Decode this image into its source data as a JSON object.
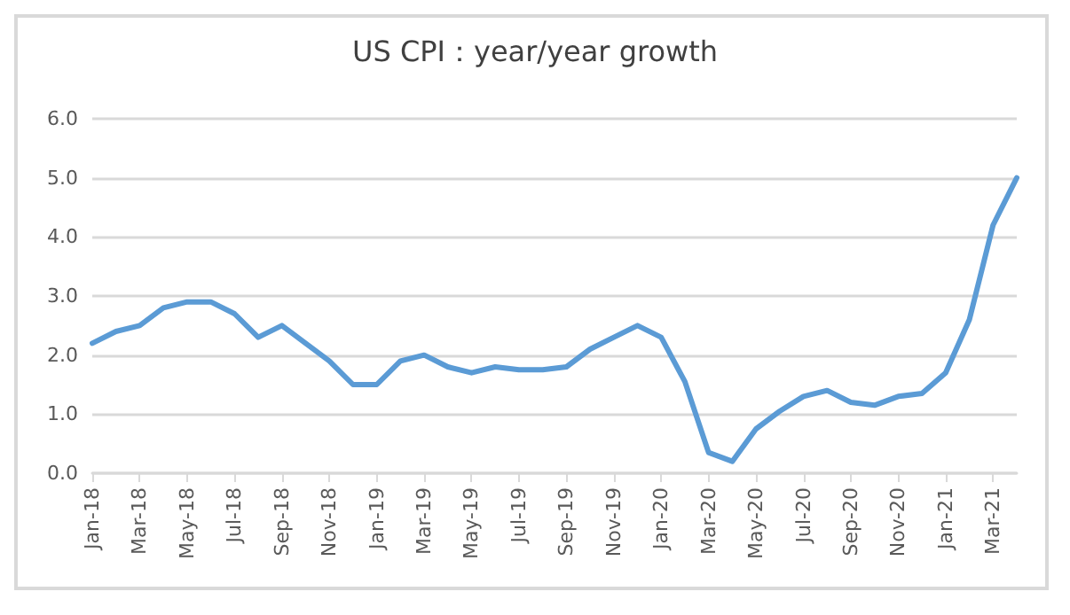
{
  "chart_data": {
    "type": "line",
    "title": "US CPI：year/year growth",
    "categories": [
      "Jan-18",
      null,
      "Mar-18",
      null,
      "May-18",
      null,
      "Jul-18",
      null,
      "Sep-18",
      null,
      "Nov-18",
      null,
      "Jan-19",
      null,
      "Mar-19",
      null,
      "May-19",
      null,
      "Jul-19",
      null,
      "Sep-19",
      null,
      "Nov-19",
      null,
      "Jan-20",
      null,
      "Mar-20",
      null,
      "May-20",
      null,
      "Jul-20",
      null,
      "Sep-20",
      null,
      "Nov-20",
      null,
      "Jan-21",
      null,
      "Mar-21",
      null
    ],
    "series": [
      {
        "color": "#5b9bd5",
        "values": [
          2.2,
          2.4,
          2.5,
          2.8,
          2.9,
          2.9,
          2.7,
          2.3,
          2.5,
          2.2,
          1.9,
          1.5,
          1.5,
          1.9,
          2.0,
          1.8,
          1.7,
          1.8,
          1.75,
          1.75,
          1.8,
          2.1,
          2.3,
          2.5,
          2.3,
          1.55,
          0.35,
          0.2,
          0.75,
          1.05,
          1.3,
          1.4,
          1.2,
          1.15,
          1.3,
          1.35,
          1.7,
          2.6,
          4.2,
          5.0
        ]
      }
    ],
    "ylim": [
      0,
      6
    ],
    "yticks": [
      {
        "value": 0,
        "label": "0.0"
      },
      {
        "value": 1,
        "label": "1.0"
      },
      {
        "value": 2,
        "label": "2.0"
      },
      {
        "value": 3,
        "label": "3.0"
      },
      {
        "value": 4,
        "label": "4.0"
      },
      {
        "value": 5,
        "label": "5.0"
      },
      {
        "value": 6,
        "label": "6.0"
      }
    ],
    "grid": "y",
    "marker": "none",
    "line_style": "solid"
  }
}
